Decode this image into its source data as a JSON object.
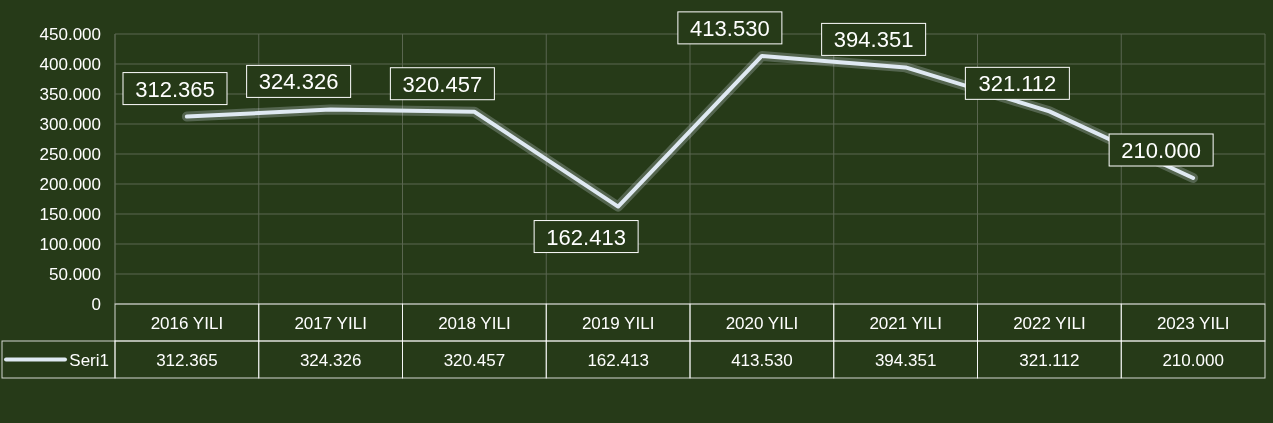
{
  "chart_data": {
    "type": "line",
    "categories": [
      "2016 YILI",
      "2017 YILI",
      "2018 YILI",
      "2019 YILI",
      "2020 YILI",
      "2021 YILI",
      "2022 YILI",
      "2023 YILI"
    ],
    "series": [
      {
        "name": "Seri1",
        "color": "#dfe9f2",
        "values": [
          312365,
          324326,
          320457,
          162413,
          413530,
          394351,
          321112,
          210000
        ],
        "value_labels": [
          "312.365",
          "324.326",
          "320.457",
          "162.413",
          "413.530",
          "394.351",
          "321.112",
          "210.000"
        ]
      }
    ],
    "ylim": [
      0,
      450000
    ],
    "yticks": [
      {
        "value": 0,
        "label": "0"
      },
      {
        "value": 50000,
        "label": "50.000"
      },
      {
        "value": 100000,
        "label": "100.000"
      },
      {
        "value": 150000,
        "label": "150.000"
      },
      {
        "value": 200000,
        "label": "200.000"
      },
      {
        "value": 250000,
        "label": "250.000"
      },
      {
        "value": 300000,
        "label": "300.000"
      },
      {
        "value": 350000,
        "label": "350.000"
      },
      {
        "value": 400000,
        "label": "400.000"
      },
      {
        "value": 450000,
        "label": "450.000"
      }
    ],
    "grid": true,
    "legend": "bottom",
    "marker": "none",
    "line_style": "solid"
  }
}
